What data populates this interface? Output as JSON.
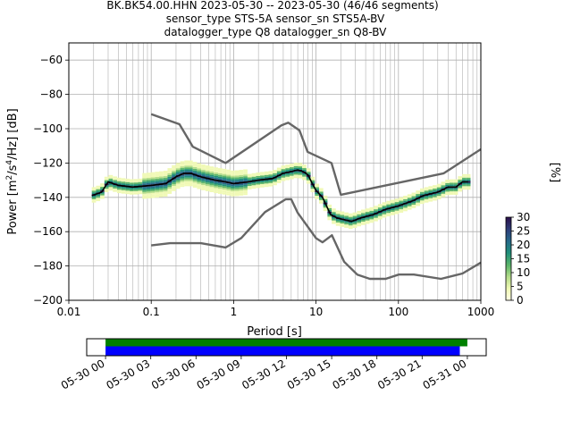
{
  "figure": {
    "title_lines": [
      "BK.BK54.00.HHN   2023-05-30 -- 2023-05-30  (46/46 segments)",
      "sensor_type STS-5A sensor_sn STS5A-BV",
      "datalogger_type Q8 datalogger_sn Q8-BV"
    ]
  },
  "chart_data": [
    {
      "type": "heatmap",
      "title": "",
      "xlabel": "Period [s]",
      "ylabel": "Power [m^2/s^4/Hz] [dB]",
      "x_scale": "log",
      "xlim": [
        0.01,
        1000
      ],
      "ylim": [
        -200,
        -50
      ],
      "x_ticks": [
        0.01,
        0.1,
        1,
        10,
        100,
        1000
      ],
      "x_tick_labels": [
        "0.01",
        "0.1",
        "1",
        "10",
        "100",
        "1000"
      ],
      "y_ticks": [
        -200,
        -180,
        -160,
        -140,
        -120,
        -100,
        -80,
        -60
      ],
      "y_tick_labels": [
        "−200",
        "−180",
        "−160",
        "−140",
        "−120",
        "−100",
        "−80",
        "−60"
      ],
      "grid": true,
      "colorbar": {
        "label": "[%]",
        "ticks": [
          0,
          5,
          10,
          15,
          20,
          25,
          30
        ],
        "range": [
          0,
          30
        ],
        "colors": [
          "#ffffe5",
          "#f0f9b5",
          "#b5dd8a",
          "#5cb56a",
          "#1f8f7a",
          "#266a8a",
          "#2e3f7a",
          "#2b0f4a"
        ]
      },
      "series": [
        {
          "name": "",
          "role": "mode",
          "color": "#000000",
          "x": [
            0.019,
            0.025,
            0.03,
            0.04,
            0.06,
            0.1,
            0.15,
            0.2,
            0.25,
            0.3,
            0.4,
            0.6,
            0.8,
            1,
            1.5,
            2,
            3,
            4,
            5,
            6,
            7,
            8,
            9,
            10,
            12,
            15,
            18,
            22,
            27,
            35,
            50,
            70,
            100,
            150,
            200,
            300,
            400,
            500,
            600,
            700
          ],
          "y": [
            -139,
            -137,
            -131,
            -133,
            -134,
            -133,
            -132,
            -128,
            -126,
            -126,
            -128,
            -130,
            -131,
            -132,
            -131,
            -130,
            -129,
            -126,
            -125,
            -124,
            -125,
            -127,
            -132,
            -136,
            -140,
            -150,
            -152,
            -153,
            -154,
            -152,
            -150,
            -147,
            -145,
            -142,
            -139,
            -137,
            -134,
            -134,
            -131,
            -131
          ]
        },
        {
          "name": "",
          "role": "high-noise model",
          "color": "#666666",
          "x": [
            0.1,
            0.22,
            0.32,
            0.8,
            3.8,
            4.6,
            6.3,
            7.9,
            15.4,
            20,
            354.8,
            1000
          ],
          "y": [
            -91.5,
            -97.4,
            -110.5,
            -120,
            -98,
            -96.5,
            -101,
            -113.5,
            -120,
            -138.5,
            -126,
            -112
          ]
        },
        {
          "name": "",
          "role": "low-noise model",
          "color": "#666666",
          "x": [
            0.1,
            0.17,
            0.4,
            0.8,
            1.24,
            2.4,
            4.3,
            5,
            6,
            10,
            12,
            15.6,
            21.9,
            31.6,
            45,
            70,
            101,
            154,
            328,
            600,
            1000
          ],
          "y": [
            -168,
            -166.7,
            -166.7,
            -169.2,
            -163.7,
            -148.6,
            -141.1,
            -141.1,
            -149,
            -163.8,
            -166.2,
            -162.1,
            -177.5,
            -185,
            -187.5,
            -187.5,
            -185,
            -185,
            -187.5,
            -184.4,
            -178
          ]
        }
      ]
    },
    {
      "type": "timeline",
      "x_tick_labels": [
        "05-30 00",
        "05-30 03",
        "05-30 06",
        "05-30 09",
        "05-30 12",
        "05-30 15",
        "05-30 18",
        "05-30 21",
        "05-31 00"
      ],
      "xlim_hours": [
        -1.25,
        25.25
      ],
      "series": [
        {
          "name": "",
          "role": "data available",
          "color": "#008000",
          "start_hour": 0,
          "end_hour": 24
        },
        {
          "name": "",
          "role": "data used",
          "color": "#0000ff",
          "start_hour": 0,
          "end_hour": 23.5
        }
      ]
    }
  ]
}
